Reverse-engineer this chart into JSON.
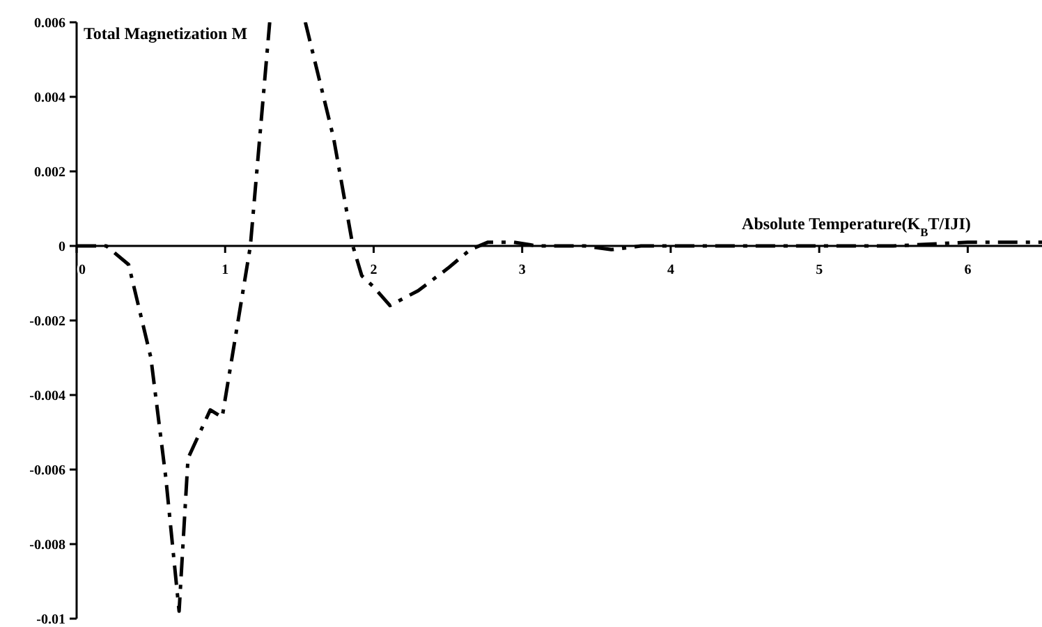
{
  "chart_data": {
    "type": "line",
    "ylabel": "Total Magnetization M",
    "xlabel": "Absolute Temperature(K$_{B}$T/IJI)",
    "xlim": [
      0,
      6.5
    ],
    "ylim": [
      -0.01,
      0.006
    ],
    "xticks": [
      0,
      1,
      2,
      3,
      4,
      5,
      6
    ],
    "yticks": [
      -0.01,
      -0.008,
      -0.006,
      -0.004,
      -0.002,
      0,
      0.002,
      0.004,
      0.006
    ],
    "grid": false,
    "marker": "none",
    "line_style": "dashed",
    "series": [
      {
        "color": "#000000",
        "x": [
          0,
          0.2,
          0.35,
          0.5,
          0.6,
          0.69,
          0.75,
          0.9,
          0.98,
          1.1,
          1.17,
          1.3,
          1.42,
          1.54,
          1.73,
          1.86,
          1.92,
          2.0,
          2.11,
          2.3,
          2.5,
          2.65,
          2.77,
          2.94,
          3.1,
          3.42,
          3.6,
          3.8,
          4.1,
          4.5,
          5.0,
          5.5,
          6.0,
          6.5
        ],
        "values": [
          0,
          0,
          -0.0005,
          -0.003,
          -0.0062,
          -0.0098,
          -0.0057,
          -0.0044,
          -0.0046,
          -0.0017,
          0,
          0.006,
          null,
          0.006,
          0.0029,
          0,
          -0.0008,
          -0.0011,
          -0.0016,
          -0.0012,
          -0.0006,
          -0.0001,
          0.0001,
          0.0001,
          0,
          0,
          -0.0001,
          0,
          0,
          0,
          0,
          0,
          0.0001,
          0.0001
        ]
      }
    ]
  }
}
